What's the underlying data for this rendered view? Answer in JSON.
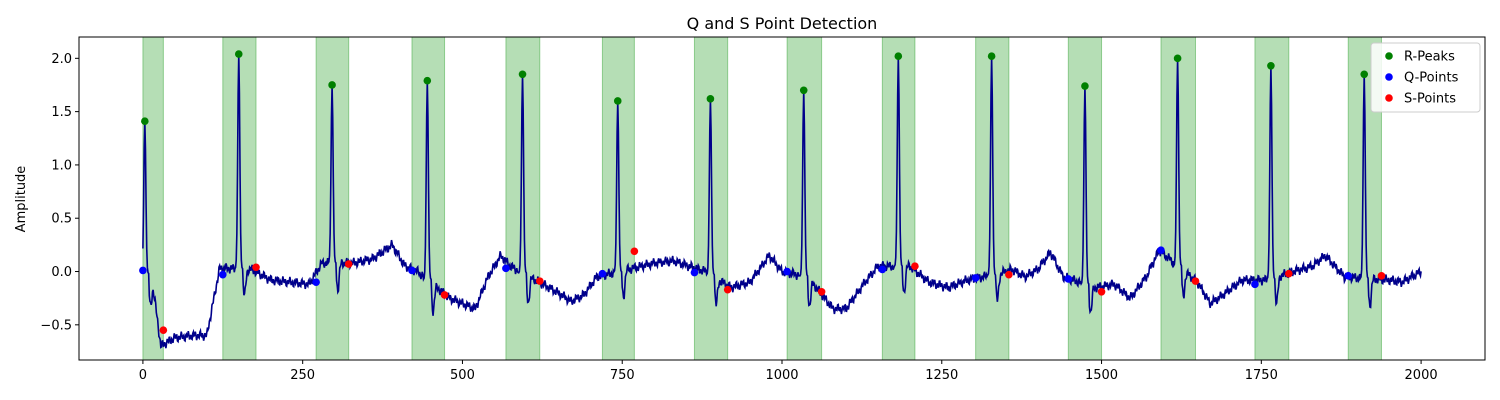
{
  "chart_data": {
    "type": "line",
    "title": "Q and S Point Detection",
    "xlabel": "",
    "ylabel": "Amplitude",
    "xlim": [
      -100,
      2100
    ],
    "ylim": [
      -0.83,
      2.2
    ],
    "xticks": [
      0,
      250,
      500,
      750,
      1000,
      1250,
      1500,
      1750,
      2000
    ],
    "yticks": [
      -0.5,
      0.0,
      0.5,
      1.0,
      1.5,
      2.0
    ],
    "xtick_labels": [
      "0",
      "250",
      "500",
      "750",
      "1000",
      "1250",
      "1500",
      "1750",
      "2000"
    ],
    "ytick_labels": [
      "−0.5",
      "0.0",
      "0.5",
      "1.0",
      "1.5",
      "2.0"
    ],
    "legend_position": "top-right",
    "grid": false,
    "colors": {
      "signal": "#00008b",
      "r_peaks": "#008000",
      "q_points": "#0000ff",
      "s_points": "#ff0000",
      "qrs_span": "#2ca02c"
    },
    "signal_baseline": [
      [
        0,
        0.0
      ],
      [
        15,
        -0.1
      ],
      [
        28,
        -0.7
      ],
      [
        50,
        -0.62
      ],
      [
        80,
        -0.6
      ],
      [
        100,
        -0.6
      ],
      [
        120,
        0.03
      ],
      [
        128,
        0.03
      ],
      [
        170,
        0.02
      ],
      [
        200,
        -0.08
      ],
      [
        230,
        -0.1
      ],
      [
        260,
        -0.12
      ],
      [
        280,
        0.08
      ],
      [
        330,
        0.08
      ],
      [
        360,
        0.12
      ],
      [
        390,
        0.25
      ],
      [
        410,
        0.05
      ],
      [
        430,
        0.0
      ],
      [
        480,
        -0.25
      ],
      [
        500,
        -0.3
      ],
      [
        520,
        -0.35
      ],
      [
        540,
        -0.05
      ],
      [
        560,
        0.15
      ],
      [
        575,
        0.05
      ],
      [
        620,
        -0.1
      ],
      [
        650,
        -0.2
      ],
      [
        670,
        -0.28
      ],
      [
        690,
        -0.22
      ],
      [
        710,
        -0.05
      ],
      [
        780,
        0.05
      ],
      [
        800,
        0.08
      ],
      [
        830,
        0.1
      ],
      [
        855,
        0.05
      ],
      [
        880,
        0.0
      ],
      [
        920,
        -0.15
      ],
      [
        950,
        -0.1
      ],
      [
        980,
        0.15
      ],
      [
        1000,
        0.0
      ],
      [
        1040,
        -0.05
      ],
      [
        1060,
        -0.2
      ],
      [
        1080,
        -0.35
      ],
      [
        1100,
        -0.35
      ],
      [
        1130,
        -0.1
      ],
      [
        1150,
        0.05
      ],
      [
        1200,
        0.05
      ],
      [
        1230,
        -0.1
      ],
      [
        1260,
        -0.15
      ],
      [
        1290,
        -0.08
      ],
      [
        1340,
        -0.02
      ],
      [
        1360,
        0.02
      ],
      [
        1380,
        -0.05
      ],
      [
        1400,
        0.02
      ],
      [
        1420,
        0.18
      ],
      [
        1440,
        -0.05
      ],
      [
        1490,
        -0.15
      ],
      [
        1520,
        -0.12
      ],
      [
        1545,
        -0.25
      ],
      [
        1570,
        -0.05
      ],
      [
        1590,
        0.2
      ],
      [
        1650,
        -0.1
      ],
      [
        1670,
        -0.3
      ],
      [
        1690,
        -0.22
      ],
      [
        1720,
        -0.08
      ],
      [
        1760,
        -0.08
      ],
      [
        1800,
        0.0
      ],
      [
        1830,
        0.05
      ],
      [
        1850,
        0.15
      ],
      [
        1880,
        -0.05
      ],
      [
        1950,
        -0.08
      ],
      [
        1970,
        -0.1
      ],
      [
        2000,
        0.0
      ]
    ],
    "r_peaks": {
      "name": "R-Peaks",
      "x": [
        3,
        150,
        296,
        445,
        594,
        743,
        888,
        1034,
        1182,
        1328,
        1474,
        1619,
        1765,
        1911
      ],
      "y": [
        1.41,
        2.04,
        1.75,
        1.79,
        1.85,
        1.6,
        1.62,
        1.7,
        2.02,
        2.02,
        1.74,
        2.0,
        1.93,
        1.85
      ]
    },
    "q_points": {
      "name": "Q-Points",
      "x": [
        0,
        125,
        271,
        421,
        568,
        719,
        863,
        1008,
        1157,
        1303,
        1448,
        1593,
        1740,
        1886
      ],
      "y": [
        0.01,
        -0.03,
        -0.1,
        0.01,
        0.03,
        -0.02,
        -0.01,
        0.0,
        0.02,
        -0.06,
        -0.07,
        0.2,
        -0.12,
        -0.04
      ]
    },
    "s_points": {
      "name": "S-Points",
      "x": [
        32,
        177,
        322,
        472,
        621,
        769,
        915,
        1062,
        1208,
        1355,
        1500,
        1647,
        1793,
        1938
      ],
      "y": [
        -0.55,
        0.04,
        0.07,
        -0.22,
        -0.09,
        0.19,
        -0.17,
        -0.19,
        0.05,
        -0.03,
        -0.19,
        -0.09,
        -0.02,
        -0.04
      ]
    },
    "qrs_spans": [
      [
        0,
        32
      ],
      [
        125,
        177
      ],
      [
        271,
        322
      ],
      [
        421,
        472
      ],
      [
        568,
        621
      ],
      [
        719,
        769
      ],
      [
        863,
        915
      ],
      [
        1008,
        1062
      ],
      [
        1157,
        1208
      ],
      [
        1303,
        1355
      ],
      [
        1448,
        1500
      ],
      [
        1593,
        1647
      ],
      [
        1740,
        1793
      ],
      [
        1886,
        1938
      ]
    ]
  }
}
